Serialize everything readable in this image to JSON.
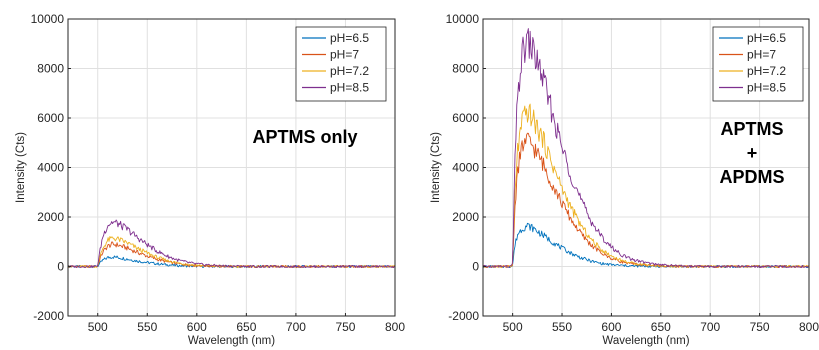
{
  "chart_data": [
    {
      "type": "line",
      "title": "",
      "xlabel": "Wavelength (nm)",
      "ylabel": "Intensity (Cts)",
      "xlim": [
        470,
        800
      ],
      "ylim": [
        -2000,
        10000
      ],
      "xticks": [
        500,
        550,
        600,
        650,
        700,
        750,
        800
      ],
      "yticks": [
        -2000,
        0,
        2000,
        4000,
        6000,
        8000,
        10000
      ],
      "grid": true,
      "legend_position": "top-right",
      "annotation": [
        "APTMS only"
      ],
      "series": [
        {
          "name": "pH=6.5",
          "color": "#0072BD",
          "points": [
            [
              470,
              0
            ],
            [
              498,
              0
            ],
            [
              500,
              10
            ],
            [
              502,
              120
            ],
            [
              505,
              250
            ],
            [
              510,
              360
            ],
            [
              515,
              390
            ],
            [
              520,
              370
            ],
            [
              530,
              300
            ],
            [
              540,
              220
            ],
            [
              550,
              160
            ],
            [
              560,
              110
            ],
            [
              570,
              70
            ],
            [
              580,
              40
            ],
            [
              590,
              20
            ],
            [
              600,
              10
            ],
            [
              620,
              0
            ],
            [
              800,
              0
            ]
          ]
        },
        {
          "name": "pH=7",
          "color": "#D95319",
          "points": [
            [
              470,
              0
            ],
            [
              498,
              0
            ],
            [
              500,
              20
            ],
            [
              502,
              280
            ],
            [
              505,
              580
            ],
            [
              510,
              820
            ],
            [
              515,
              900
            ],
            [
              520,
              870
            ],
            [
              530,
              740
            ],
            [
              540,
              570
            ],
            [
              550,
              420
            ],
            [
              560,
              290
            ],
            [
              570,
              190
            ],
            [
              580,
              120
            ],
            [
              590,
              70
            ],
            [
              600,
              40
            ],
            [
              620,
              10
            ],
            [
              640,
              0
            ],
            [
              800,
              0
            ]
          ]
        },
        {
          "name": "pH=7.2",
          "color": "#EDB120",
          "points": [
            [
              470,
              0
            ],
            [
              498,
              0
            ],
            [
              500,
              25
            ],
            [
              502,
              350
            ],
            [
              505,
              730
            ],
            [
              510,
              1050
            ],
            [
              515,
              1150
            ],
            [
              520,
              1110
            ],
            [
              530,
              950
            ],
            [
              540,
              730
            ],
            [
              550,
              540
            ],
            [
              560,
              370
            ],
            [
              570,
              240
            ],
            [
              580,
              150
            ],
            [
              590,
              90
            ],
            [
              600,
              50
            ],
            [
              620,
              15
            ],
            [
              640,
              0
            ],
            [
              800,
              0
            ]
          ]
        },
        {
          "name": "pH=8.5",
          "color": "#7E2F8E",
          "points": [
            [
              470,
              0
            ],
            [
              498,
              0
            ],
            [
              500,
              40
            ],
            [
              502,
              580
            ],
            [
              505,
              1200
            ],
            [
              510,
              1680
            ],
            [
              515,
              1800
            ],
            [
              520,
              1740
            ],
            [
              530,
              1500
            ],
            [
              540,
              1170
            ],
            [
              550,
              880
            ],
            [
              560,
              620
            ],
            [
              570,
              420
            ],
            [
              580,
              270
            ],
            [
              590,
              170
            ],
            [
              600,
              100
            ],
            [
              620,
              35
            ],
            [
              640,
              10
            ],
            [
              660,
              0
            ],
            [
              800,
              0
            ]
          ]
        }
      ]
    },
    {
      "type": "line",
      "title": "",
      "xlabel": "Wavelength (nm)",
      "ylabel": "Intensity (Cts)",
      "xlim": [
        470,
        800
      ],
      "ylim": [
        -2000,
        10000
      ],
      "xticks": [
        500,
        550,
        600,
        650,
        700,
        750,
        800
      ],
      "yticks": [
        -2000,
        0,
        2000,
        4000,
        6000,
        8000,
        10000
      ],
      "grid": true,
      "legend_position": "top-right",
      "annotation": [
        "APTMS",
        "+",
        "APDMS"
      ],
      "series": [
        {
          "name": "pH=6.5",
          "color": "#0072BD",
          "points": [
            [
              470,
              0
            ],
            [
              498,
              0
            ],
            [
              500,
              30
            ],
            [
              502,
              800
            ],
            [
              505,
              1300
            ],
            [
              510,
              1550
            ],
            [
              515,
              1650
            ],
            [
              520,
              1560
            ],
            [
              530,
              1290
            ],
            [
              540,
              1000
            ],
            [
              550,
              740
            ],
            [
              560,
              520
            ],
            [
              570,
              340
            ],
            [
              580,
              210
            ],
            [
              590,
              120
            ],
            [
              600,
              70
            ],
            [
              620,
              20
            ],
            [
              640,
              5
            ],
            [
              660,
              0
            ],
            [
              800,
              0
            ]
          ]
        },
        {
          "name": "pH=7",
          "color": "#D95319",
          "points": [
            [
              470,
              0
            ],
            [
              498,
              0
            ],
            [
              500,
              60
            ],
            [
              502,
              2200
            ],
            [
              505,
              3900
            ],
            [
              510,
              4900
            ],
            [
              515,
              5100
            ],
            [
              520,
              4900
            ],
            [
              530,
              4200
            ],
            [
              540,
              3350
            ],
            [
              550,
              2550
            ],
            [
              560,
              1850
            ],
            [
              570,
              1280
            ],
            [
              580,
              850
            ],
            [
              590,
              540
            ],
            [
              600,
              330
            ],
            [
              610,
              200
            ],
            [
              620,
              110
            ],
            [
              640,
              40
            ],
            [
              660,
              10
            ],
            [
              680,
              0
            ],
            [
              800,
              0
            ]
          ]
        },
        {
          "name": "pH=7.2",
          "color": "#EDB120",
          "points": [
            [
              470,
              0
            ],
            [
              498,
              0
            ],
            [
              500,
              70
            ],
            [
              502,
              2700
            ],
            [
              505,
              4700
            ],
            [
              510,
              5900
            ],
            [
              515,
              6250
            ],
            [
              520,
              6000
            ],
            [
              530,
              5200
            ],
            [
              540,
              4150
            ],
            [
              550,
              3150
            ],
            [
              560,
              2300
            ],
            [
              570,
              1600
            ],
            [
              580,
              1060
            ],
            [
              590,
              680
            ],
            [
              600,
              420
            ],
            [
              610,
              250
            ],
            [
              620,
              140
            ],
            [
              640,
              50
            ],
            [
              660,
              15
            ],
            [
              680,
              0
            ],
            [
              800,
              0
            ]
          ]
        },
        {
          "name": "pH=8.5",
          "color": "#7E2F8E",
          "points": [
            [
              470,
              0
            ],
            [
              498,
              0
            ],
            [
              500,
              100
            ],
            [
              502,
              3800
            ],
            [
              505,
              6900
            ],
            [
              510,
              8600
            ],
            [
              515,
              9100
            ],
            [
              520,
              8800
            ],
            [
              530,
              7700
            ],
            [
              540,
              6200
            ],
            [
              550,
              4800
            ],
            [
              560,
              3600
            ],
            [
              570,
              2600
            ],
            [
              580,
              1800
            ],
            [
              590,
              1200
            ],
            [
              600,
              780
            ],
            [
              610,
              480
            ],
            [
              620,
              290
            ],
            [
              640,
              110
            ],
            [
              660,
              40
            ],
            [
              680,
              10
            ],
            [
              700,
              0
            ],
            [
              800,
              0
            ]
          ]
        }
      ]
    }
  ]
}
